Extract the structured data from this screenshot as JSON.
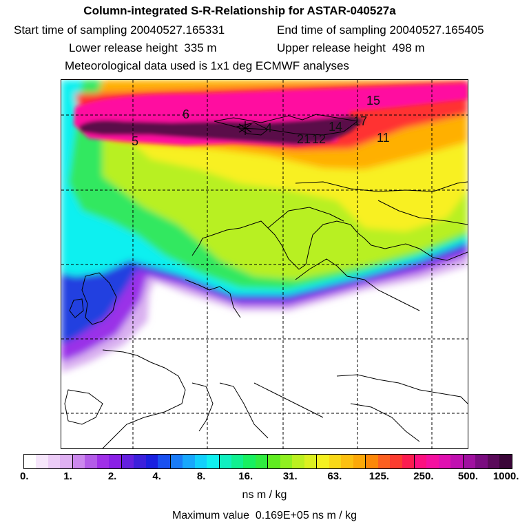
{
  "header": {
    "title": "Column-integrated S-R-Relationship for ASTAR-040527a",
    "start_label": "Start time of sampling",
    "start_value": "20040527.165331",
    "end_label": "End time of sampling",
    "end_value": "20040527.165405",
    "lower_label": "Lower release height",
    "lower_value": "335 m",
    "upper_label": "Upper release height",
    "upper_value": "498 m",
    "met_line": "Meteorological data used is 1x1 deg ECMWF analyses"
  },
  "map": {
    "contour_labels": [
      "15",
      "6",
      "14",
      "17",
      "4",
      "21",
      "12",
      "5",
      "11"
    ],
    "colors": {
      "white": "#ffffff",
      "lilac": "#d9b0f0",
      "violet": "#9a30e8",
      "blue": "#2040e0",
      "sky": "#20b0ff",
      "cyan": "#10f0f0",
      "green": "#30e860",
      "lime": "#b8f020",
      "yellow": "#f8f020",
      "orange": "#ffb000",
      "red": "#ff3030",
      "magenta": "#ff10a0",
      "purple": "#5a0a48"
    }
  },
  "colorbar": {
    "segment_colors": [
      "#ffffff",
      "#f6e6fb",
      "#ecccf7",
      "#dfb0f2",
      "#cc88ee",
      "#b45ce8",
      "#a030e8",
      "#8a20e6",
      "#6420e0",
      "#3c20dc",
      "#1a20e0",
      "#1a50f0",
      "#1a7cf8",
      "#18a8fc",
      "#12d0fc",
      "#10f0f0",
      "#10f0c0",
      "#10f090",
      "#18f060",
      "#30ec40",
      "#60ec20",
      "#90f020",
      "#bcf020",
      "#dcf020",
      "#f4f020",
      "#f8d818",
      "#fcc010",
      "#fca808",
      "#fc8808",
      "#fc6020",
      "#fc3c30",
      "#fc1c50",
      "#fc1080",
      "#f410a0",
      "#e010b0",
      "#c010b0",
      "#a010a0",
      "#7a0c80",
      "#5a0a5a",
      "#3a0638"
    ],
    "tick_labels": [
      "0.",
      "1.",
      "2.",
      "4.",
      "8.",
      "16.",
      "31.",
      "63.",
      "125.",
      "250.",
      "500.",
      "1000."
    ],
    "unit": "ns m / kg",
    "maximum_label": "Maximum value",
    "maximum_value": "0.169E+05 ns m / kg"
  }
}
